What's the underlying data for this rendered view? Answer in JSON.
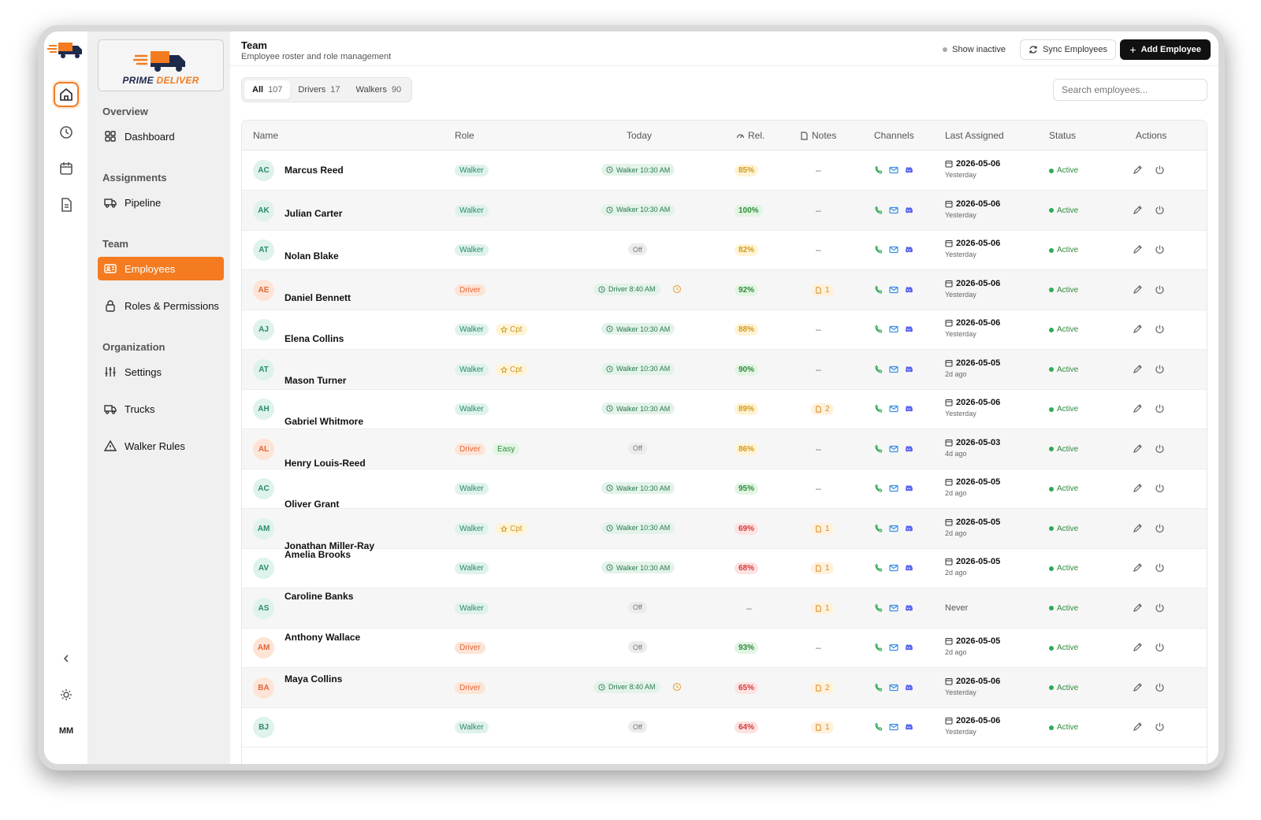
{
  "brand": {
    "name_a": "PRIME ",
    "name_b": "DELIVER"
  },
  "sidebar": {
    "sections": [
      {
        "label": "Overview",
        "items": [
          {
            "label": "Dashboard",
            "icon": "grid-icon"
          }
        ]
      },
      {
        "label": "Assignments",
        "items": [
          {
            "label": "Pipeline",
            "icon": "truck-icon"
          }
        ]
      },
      {
        "label": "Team",
        "items": [
          {
            "label": "Employees",
            "icon": "id-card-icon",
            "active": true
          },
          {
            "label": "Roles & Permissions",
            "icon": "lock-icon"
          }
        ]
      },
      {
        "label": "Organization",
        "items": [
          {
            "label": "Settings",
            "icon": "sliders-icon"
          },
          {
            "label": "Trucks",
            "icon": "truck-icon"
          },
          {
            "label": "Walker Rules",
            "icon": "warning-icon"
          }
        ]
      }
    ]
  },
  "rail": {
    "user_initials": "MM"
  },
  "header": {
    "title": "Team",
    "subtitle": "Employee roster and role management",
    "show_inactive": "Show inactive",
    "sync": "Sync Employees",
    "add": "Add Employee"
  },
  "tabs": [
    {
      "label": "All",
      "count": "107",
      "active": true
    },
    {
      "label": "Drivers",
      "count": "17"
    },
    {
      "label": "Walkers",
      "count": "90"
    }
  ],
  "search": {
    "placeholder": "Search employees..."
  },
  "table": {
    "columns": [
      "Name",
      "Role",
      "Today",
      "Rel.",
      "Notes",
      "Channels",
      "Last Assigned",
      "Status",
      "Actions"
    ],
    "rows": [
      {
        "initials": "AC",
        "name": "Marcus Reed",
        "role": "Walker",
        "tag": "",
        "today": "Walker 10:30 AM",
        "pending": false,
        "rel": "85%",
        "notes": "",
        "date": "2026-05-06",
        "rel_time": "Yesterday",
        "status": "Active"
      },
      {
        "initials": "AK",
        "name": "Julian Carter",
        "role": "Walker",
        "tag": "",
        "today": "Walker 10:30 AM",
        "pending": false,
        "rel": "100%",
        "notes": "",
        "date": "2026-05-06",
        "rel_time": "Yesterday",
        "status": "Active"
      },
      {
        "initials": "AT",
        "name": "Nolan Blake",
        "role": "Walker",
        "tag": "",
        "today": "Off",
        "pending": false,
        "rel": "82%",
        "notes": "",
        "date": "2026-05-06",
        "rel_time": "Yesterday",
        "status": "Active"
      },
      {
        "initials": "AE",
        "name": "Daniel Bennett",
        "role": "Driver",
        "tag": "",
        "today": "Driver 8:40 AM",
        "pending": true,
        "rel": "92%",
        "notes": "1",
        "date": "2026-05-06",
        "rel_time": "Yesterday",
        "status": "Active"
      },
      {
        "initials": "AJ",
        "name": "Elena Collins",
        "role": "Walker",
        "tag": "Cpt",
        "today": "Walker 10:30 AM",
        "pending": false,
        "rel": "88%",
        "notes": "",
        "date": "2026-05-06",
        "rel_time": "Yesterday",
        "status": "Active"
      },
      {
        "initials": "AT",
        "name": "Mason Turner",
        "role": "Walker",
        "tag": "Cpt",
        "today": "Walker 10:30 AM",
        "pending": false,
        "rel": "90%",
        "notes": "",
        "date": "2026-05-05",
        "rel_time": "2d ago",
        "status": "Active"
      },
      {
        "initials": "AH",
        "name": "Gabriel Whitmore",
        "role": "Walker",
        "tag": "",
        "today": "Walker 10:30 AM",
        "pending": false,
        "rel": "89%",
        "notes": "2",
        "date": "2026-05-06",
        "rel_time": "Yesterday",
        "status": "Active"
      },
      {
        "initials": "AL",
        "name": "Henry Louis-Reed",
        "role": "Driver",
        "tag": "Easy",
        "today": "Off",
        "pending": false,
        "rel": "86%",
        "notes": "",
        "date": "2026-05-03",
        "rel_time": "4d ago",
        "status": "Active"
      },
      {
        "initials": "AC",
        "name": "Oliver Grant",
        "role": "Walker",
        "tag": "",
        "today": "Walker 10:30 AM",
        "pending": false,
        "rel": "95%",
        "notes": "",
        "date": "2026-05-05",
        "rel_time": "2d ago",
        "status": "Active"
      },
      {
        "initials": "AM",
        "name": "Jonathan Miller-Ray",
        "role": "Walker",
        "tag": "Cpt",
        "today": "Walker 10:30 AM",
        "pending": false,
        "rel": "69%",
        "notes": "1",
        "date": "2026-05-05",
        "rel_time": "2d ago",
        "status": "Active"
      },
      {
        "initials": "AV",
        "name": "Amelia Brooks",
        "role": "Walker",
        "tag": "",
        "today": "Walker 10:30 AM",
        "pending": false,
        "rel": "68%",
        "notes": "1",
        "date": "2026-05-05",
        "rel_time": "2d ago",
        "status": "Active"
      },
      {
        "initials": "AS",
        "name": "Caroline Banks",
        "role": "Walker",
        "tag": "",
        "today": "Off",
        "pending": false,
        "rel": "",
        "notes": "1",
        "date": "",
        "rel_time": "",
        "never": "Never",
        "status": "Active"
      },
      {
        "initials": "AM",
        "name": "Anthony Wallace",
        "role": "Driver",
        "tag": "",
        "today": "Off",
        "pending": false,
        "rel": "93%",
        "notes": "",
        "date": "2026-05-05",
        "rel_time": "2d ago",
        "status": "Active"
      },
      {
        "initials": "BA",
        "name": "Maya Collins",
        "role": "Driver",
        "tag": "",
        "today": "Driver 8:40 AM",
        "pending": true,
        "rel": "65%",
        "notes": "2",
        "date": "2026-05-06",
        "rel_time": "Yesterday",
        "status": "Active"
      },
      {
        "initials": "BJ",
        "name": "",
        "role": "Walker",
        "tag": "",
        "today": "Off",
        "pending": false,
        "rel": "64%",
        "notes": "1",
        "date": "2026-05-06",
        "rel_time": "Yesterday",
        "status": "Active"
      }
    ]
  },
  "colors": {
    "accent": "#f47b20",
    "active_green": "#2eaa55",
    "walker": "#2a8a6c",
    "driver": "#e0663a",
    "discord": "#5865f2"
  }
}
